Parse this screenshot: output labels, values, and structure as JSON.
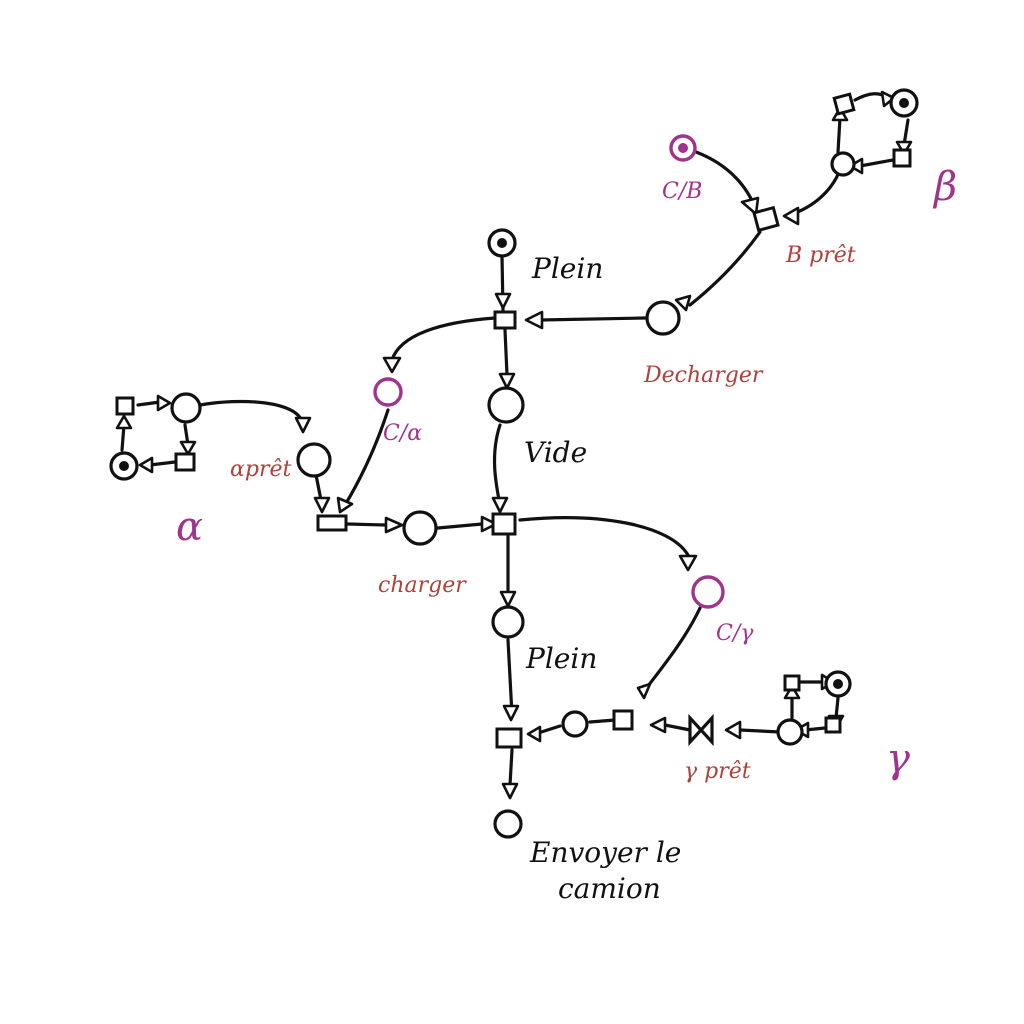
{
  "diagram": {
    "type": "petri-net",
    "labels": {
      "plein_top": "Plein",
      "plein_mid": "Plein",
      "vide": "Vide",
      "decharger": "Decharger",
      "b_pret": "B prêt",
      "c_beta": "C/B",
      "c_alpha": "C/α",
      "a_pret": "αprêt",
      "charger": "charger",
      "c_gamma": "C/γ",
      "g_pret": "γ prêt",
      "envoyer_line1": "Envoyer le",
      "envoyer_line2": "camion",
      "alpha": "α",
      "beta": "β",
      "gamma": "γ"
    }
  },
  "colors": {
    "ink": "#111111",
    "red_label": "#b0413a",
    "magenta": "#a0338c"
  }
}
